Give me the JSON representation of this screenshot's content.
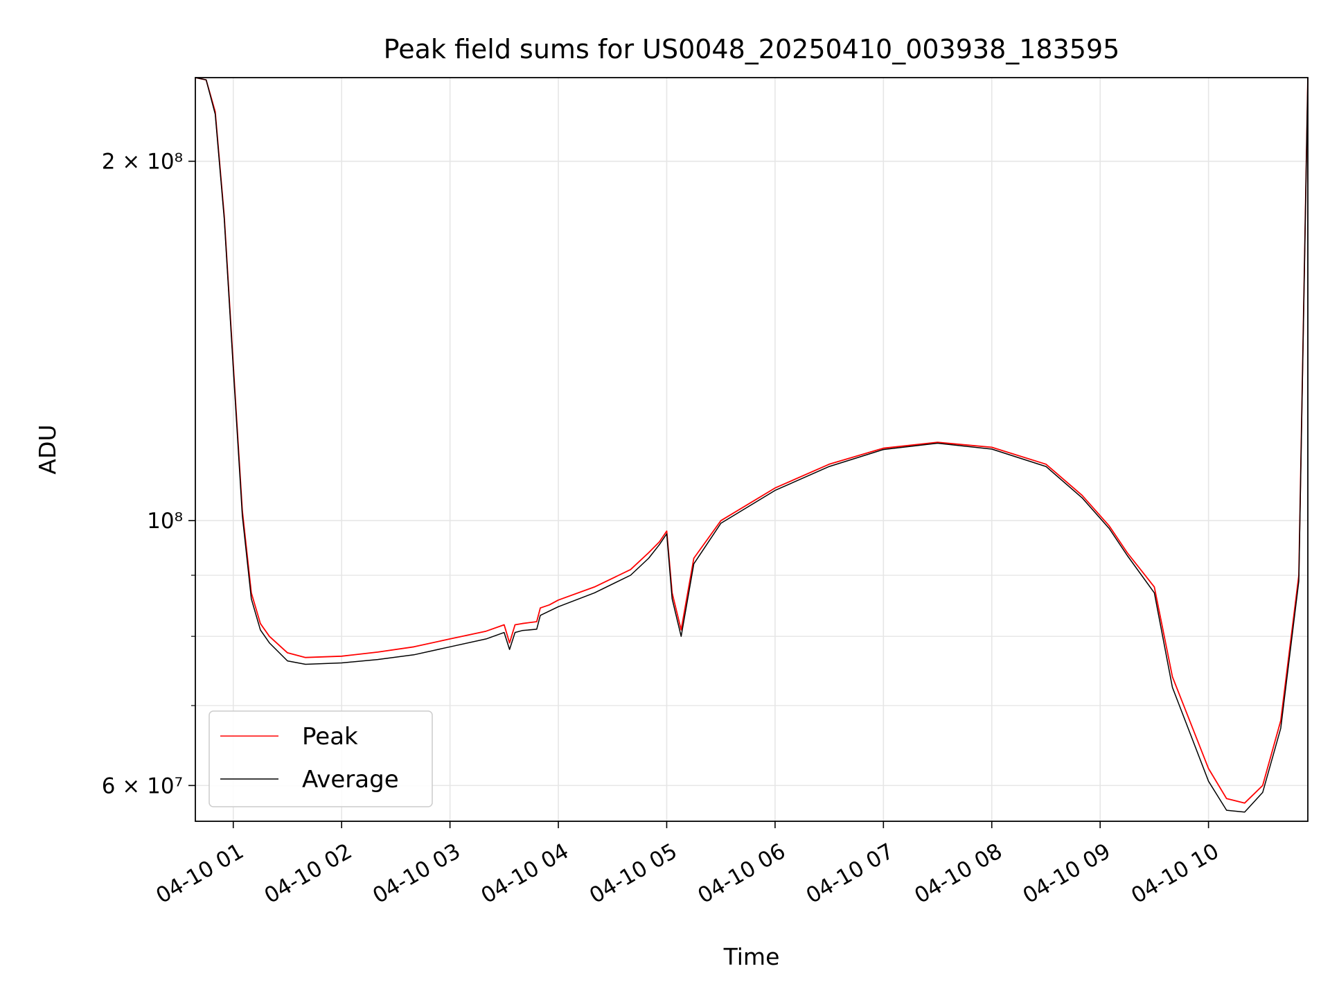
{
  "chart_data": {
    "type": "line",
    "title": "Peak field sums for US0048_20250410_003938_183595",
    "xlabel": "Time",
    "ylabel": "ADU",
    "x_axis": {
      "type": "datetime",
      "range": [
        "04-10 00:39",
        "04-10 10:55"
      ],
      "ticks": [
        "04-10 01",
        "04-10 02",
        "04-10 03",
        "04-10 04",
        "04-10 05",
        "04-10 06",
        "04-10 07",
        "04-10 08",
        "04-10 09",
        "04-10 10"
      ]
    },
    "y_axis": {
      "scale": "log",
      "range": [
        56000000,
        235000000
      ],
      "major_ticks": [
        {
          "value": 60000000,
          "label": "6 × 10⁷"
        },
        {
          "value": 100000000,
          "label": "10⁸"
        },
        {
          "value": 200000000,
          "label": "2 × 10⁸"
        }
      ],
      "minor_gridlines": [
        70000000,
        80000000,
        90000000
      ]
    },
    "grid": true,
    "legend_position": "lower-left",
    "series": [
      {
        "name": "Peak",
        "color": "#ff0000",
        "x": [
          "04-10 00:39",
          "04-10 00:45",
          "04-10 00:50",
          "04-10 00:55",
          "04-10 01:00",
          "04-10 01:05",
          "04-10 01:10",
          "04-10 01:15",
          "04-10 01:20",
          "04-10 01:30",
          "04-10 01:40",
          "04-10 02:00",
          "04-10 02:20",
          "04-10 02:40",
          "04-10 03:00",
          "04-10 03:20",
          "04-10 03:30",
          "04-10 03:33",
          "04-10 03:36",
          "04-10 03:40",
          "04-10 03:48",
          "04-10 03:50",
          "04-10 03:55",
          "04-10 04:00",
          "04-10 04:20",
          "04-10 04:40",
          "04-10 04:50",
          "04-10 04:56",
          "04-10 05:00",
          "04-10 05:03",
          "04-10 05:08",
          "04-10 05:15",
          "04-10 05:30",
          "04-10 06:00",
          "04-10 06:30",
          "04-10 07:00",
          "04-10 07:30",
          "04-10 08:00",
          "04-10 08:30",
          "04-10 08:50",
          "04-10 09:05",
          "04-10 09:15",
          "04-10 09:30",
          "04-10 09:40",
          "04-10 10:00",
          "04-10 10:10",
          "04-10 10:20",
          "04-10 10:30",
          "04-10 10:40",
          "04-10 10:50",
          "04-10 10:55"
        ],
        "y": [
          235000000,
          234000000,
          220000000,
          180000000,
          135000000,
          102000000,
          87000000,
          82000000,
          80000000,
          77500000,
          76800000,
          77000000,
          77600000,
          78400000,
          79600000,
          80800000,
          81800000,
          79000000,
          81800000,
          82000000,
          82300000,
          84500000,
          85000000,
          85800000,
          88000000,
          91000000,
          94000000,
          96000000,
          98000000,
          87000000,
          81000000,
          93000000,
          100000000,
          106500000,
          111500000,
          115000000,
          116300000,
          115200000,
          111500000,
          105000000,
          99000000,
          94000000,
          88000000,
          74000000,
          62000000,
          58500000,
          58000000,
          60000000,
          68000000,
          90000000,
          235000000
        ]
      },
      {
        "name": "Average",
        "color": "#000000",
        "x": [
          "04-10 00:39",
          "04-10 00:45",
          "04-10 00:50",
          "04-10 00:55",
          "04-10 01:00",
          "04-10 01:05",
          "04-10 01:10",
          "04-10 01:15",
          "04-10 01:20",
          "04-10 01:30",
          "04-10 01:40",
          "04-10 02:00",
          "04-10 02:20",
          "04-10 02:40",
          "04-10 03:00",
          "04-10 03:20",
          "04-10 03:30",
          "04-10 03:33",
          "04-10 03:36",
          "04-10 03:40",
          "04-10 03:48",
          "04-10 03:50",
          "04-10 03:55",
          "04-10 04:00",
          "04-10 04:20",
          "04-10 04:40",
          "04-10 04:50",
          "04-10 04:56",
          "04-10 05:00",
          "04-10 05:03",
          "04-10 05:08",
          "04-10 05:15",
          "04-10 05:30",
          "04-10 06:00",
          "04-10 06:30",
          "04-10 07:00",
          "04-10 07:30",
          "04-10 08:00",
          "04-10 08:30",
          "04-10 08:50",
          "04-10 09:05",
          "04-10 09:15",
          "04-10 09:30",
          "04-10 09:40",
          "04-10 10:00",
          "04-10 10:10",
          "04-10 10:20",
          "04-10 10:30",
          "04-10 10:40",
          "04-10 10:50",
          "04-10 10:55"
        ],
        "y": [
          235000000,
          234000000,
          219000000,
          179000000,
          134000000,
          101000000,
          86000000,
          81000000,
          79000000,
          76300000,
          75800000,
          76000000,
          76500000,
          77200000,
          78400000,
          79600000,
          80600000,
          78000000,
          80600000,
          80900000,
          81100000,
          83300000,
          84000000,
          84700000,
          87000000,
          90000000,
          93000000,
          95500000,
          97500000,
          86000000,
          80000000,
          92000000,
          99500000,
          106000000,
          111000000,
          114700000,
          116100000,
          114800000,
          111000000,
          104500000,
          98500000,
          93500000,
          87000000,
          72500000,
          60500000,
          57200000,
          57000000,
          59200000,
          67000000,
          89000000,
          235000000
        ]
      }
    ]
  }
}
